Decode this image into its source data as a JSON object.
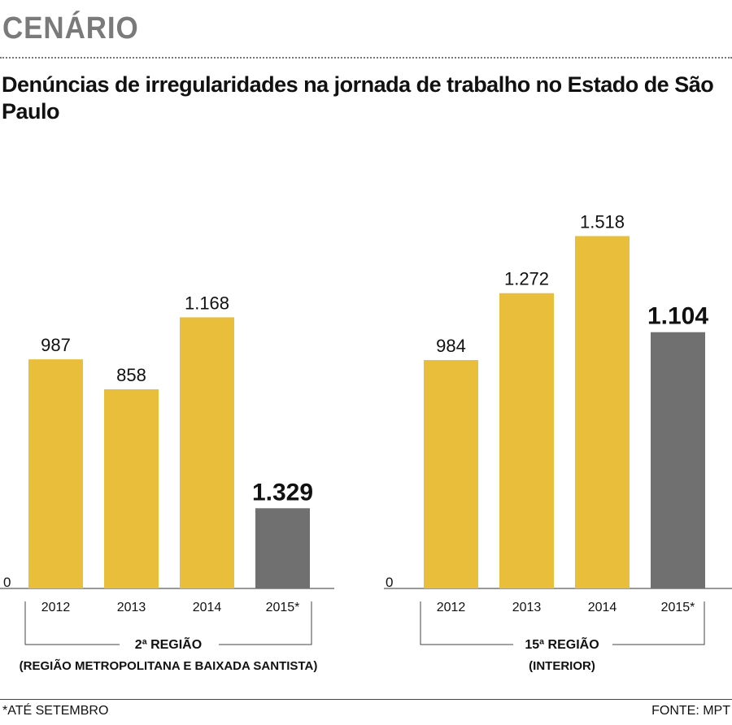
{
  "header": {
    "kicker": "CENÁRIO",
    "title": "Denúncias de irregularidades na jornada de trabalho no Estado de São Paulo"
  },
  "footer": {
    "note": "*ATÉ SETEMBRO",
    "source": "FONTE: MPT"
  },
  "colors": {
    "bar": "#e8be3a",
    "highlight": "#707070",
    "kicker": "#7a7a7a"
  },
  "chart_data": [
    {
      "type": "bar",
      "categories": [
        "2012",
        "2013",
        "2014",
        "2015*"
      ],
      "values": [
        987,
        858,
        1168,
        1329
      ],
      "labels": [
        "987",
        "858",
        "1.168",
        "1.329"
      ],
      "highlight_index": 3,
      "zero_label": "0",
      "group_label": "2ª REGIÃO",
      "group_sublabel": "(REGIÃO METROPOLITANA E BAIXADA SANTISTA)"
    },
    {
      "type": "bar",
      "categories": [
        "2012",
        "2013",
        "2014",
        "2015*"
      ],
      "values": [
        984,
        1272,
        1518,
        1104
      ],
      "labels": [
        "984",
        "1.272",
        "1.518",
        "1.104"
      ],
      "highlight_index": 3,
      "zero_label": "0",
      "group_label": "15ª REGIÃO",
      "group_sublabel": "(INTERIOR)"
    }
  ]
}
